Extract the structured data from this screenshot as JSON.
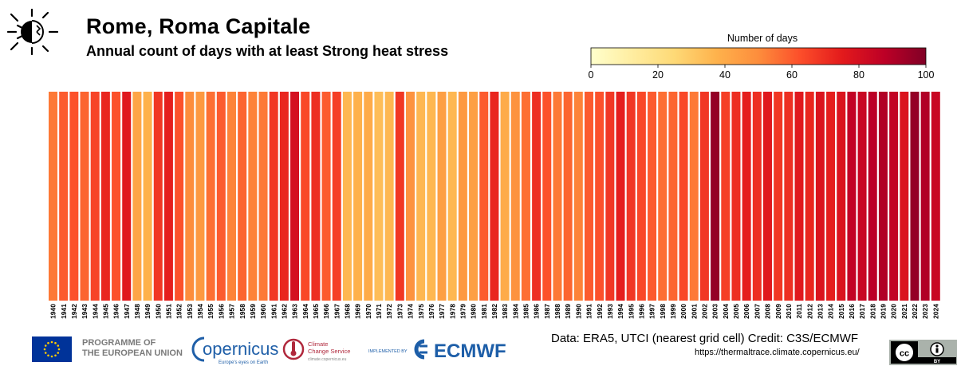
{
  "header": {
    "title": "Rome, Roma Capitale",
    "subtitle": "Annual count of days with at least Strong heat stress"
  },
  "colorbar": {
    "label": "Number of days",
    "ticks": [
      "0",
      "20",
      "40",
      "60",
      "80",
      "100"
    ],
    "min": 0,
    "max": 100,
    "stops": [
      "#ffffcc",
      "#ffeda0",
      "#fed976",
      "#feb24c",
      "#fd8d3c",
      "#fc4e2a",
      "#e31a1c",
      "#bd0026",
      "#800026"
    ]
  },
  "chart_data": {
    "type": "heatmap",
    "title": "Rome, Roma Capitale",
    "subtitle": "Annual count of days with at least Strong heat stress",
    "colorbar_label": "Number of days",
    "value_range": [
      0,
      100
    ],
    "years": [
      1940,
      1941,
      1942,
      1943,
      1944,
      1945,
      1946,
      1947,
      1948,
      1949,
      1950,
      1951,
      1952,
      1953,
      1954,
      1955,
      1956,
      1957,
      1958,
      1959,
      1960,
      1961,
      1962,
      1963,
      1964,
      1965,
      1966,
      1967,
      1968,
      1969,
      1970,
      1971,
      1972,
      1973,
      1974,
      1975,
      1976,
      1977,
      1978,
      1979,
      1980,
      1981,
      1982,
      1983,
      1984,
      1985,
      1986,
      1987,
      1988,
      1989,
      1990,
      1991,
      1992,
      1993,
      1994,
      1995,
      1996,
      1997,
      1998,
      1999,
      2000,
      2001,
      2002,
      2003,
      2004,
      2005,
      2006,
      2007,
      2008,
      2009,
      2010,
      2011,
      2012,
      2013,
      2014,
      2015,
      2016,
      2017,
      2018,
      2019,
      2020,
      2021,
      2022,
      2023,
      2024
    ],
    "values": [
      54,
      60,
      62,
      58,
      65,
      72,
      62,
      76,
      42,
      38,
      68,
      74,
      62,
      50,
      46,
      56,
      60,
      52,
      58,
      52,
      54,
      68,
      72,
      80,
      64,
      70,
      60,
      66,
      36,
      38,
      40,
      34,
      36,
      68,
      48,
      36,
      36,
      44,
      36,
      46,
      44,
      60,
      72,
      40,
      48,
      56,
      70,
      62,
      54,
      58,
      52,
      60,
      62,
      68,
      74,
      68,
      64,
      60,
      56,
      58,
      64,
      54,
      68,
      96,
      66,
      70,
      74,
      70,
      76,
      68,
      70,
      76,
      72,
      78,
      74,
      78,
      86,
      84,
      88,
      90,
      86,
      78,
      96,
      90,
      84
    ]
  },
  "footer": {
    "programme_line1": "PROGRAMME OF",
    "programme_line2": "THE EUROPEAN UNION",
    "copernicus": "opernicus",
    "copernicus_tagline": "Europe's eyes on Earth",
    "c3s_line1": "Climate",
    "c3s_line2": "Change Service",
    "c3s_url": "climate.copernicus.eu",
    "implemented_by": "IMPLEMENTED BY",
    "ecmwf": "ECMWF",
    "data_credit": "Data: ERA5, UTCI (nearest grid cell)   Credit: C3S/ECMWF",
    "url": "https://thermaltrace.climate.copernicus.eu/",
    "cc_by": "BY"
  },
  "colors": {
    "eu_blue": "#003399",
    "eu_star": "#ffcc00",
    "copernicus_blue": "#1f5fa8",
    "c3s_red": "#b0283c",
    "ecmwf_blue": "#1d5ea8"
  }
}
